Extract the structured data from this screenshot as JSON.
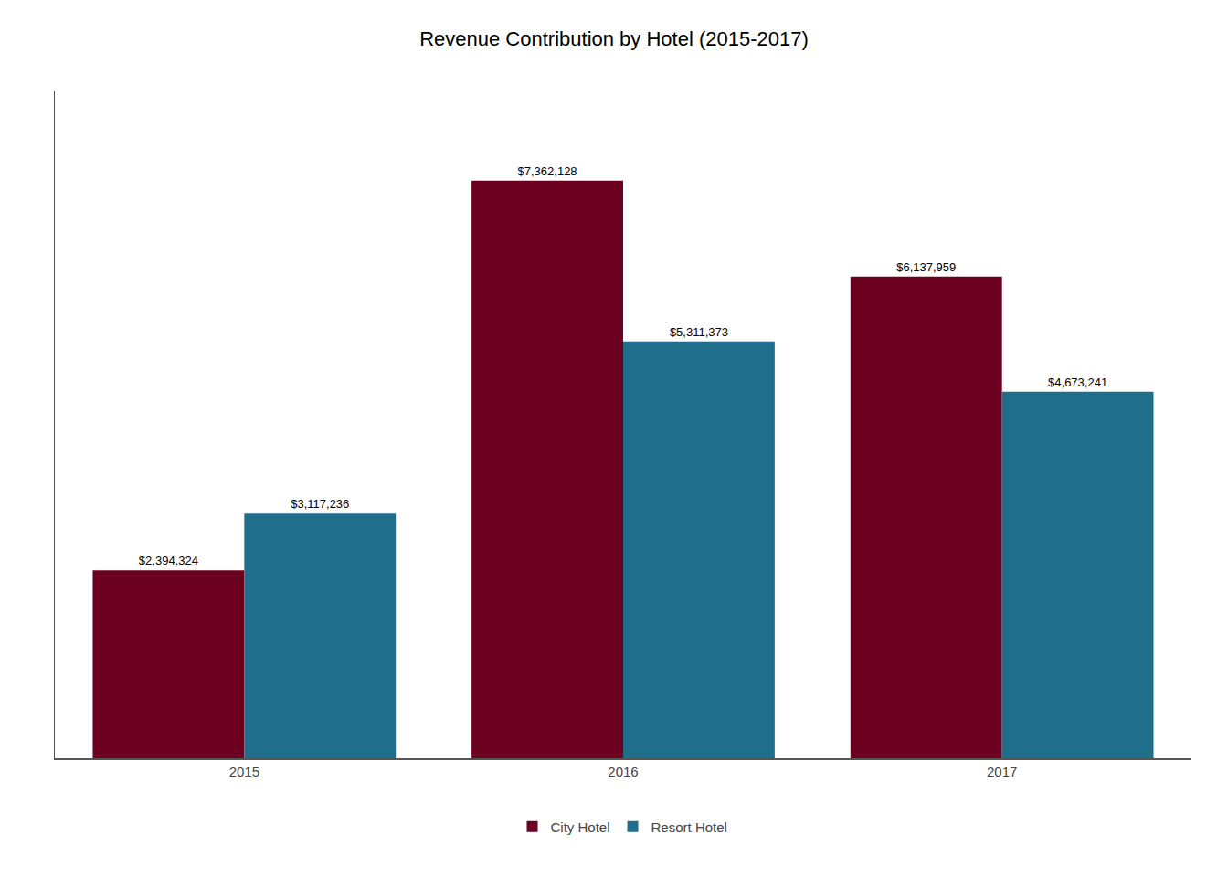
{
  "chart_data": {
    "type": "bar",
    "title": "Revenue Contribution by Hotel (2015-2017)",
    "categories": [
      "2015",
      "2016",
      "2017"
    ],
    "series": [
      {
        "name": "City Hotel",
        "color": "#6B0020",
        "values": [
          2394324,
          7362128,
          6137959
        ],
        "value_labels": [
          "$2,394,324",
          "$7,362,128",
          "$6,137,959"
        ]
      },
      {
        "name": "Resort Hotel",
        "color": "#1F6E8C",
        "values": [
          3117236,
          5311373,
          4673241
        ],
        "value_labels": [
          "$3,117,236",
          "$5,311,373",
          "$4,673,241"
        ]
      }
    ],
    "ylim": [
      0,
      8500000
    ],
    "yticks": [],
    "grid": false,
    "legend": "bottom",
    "data_labels": true,
    "tick_labels": "x"
  }
}
